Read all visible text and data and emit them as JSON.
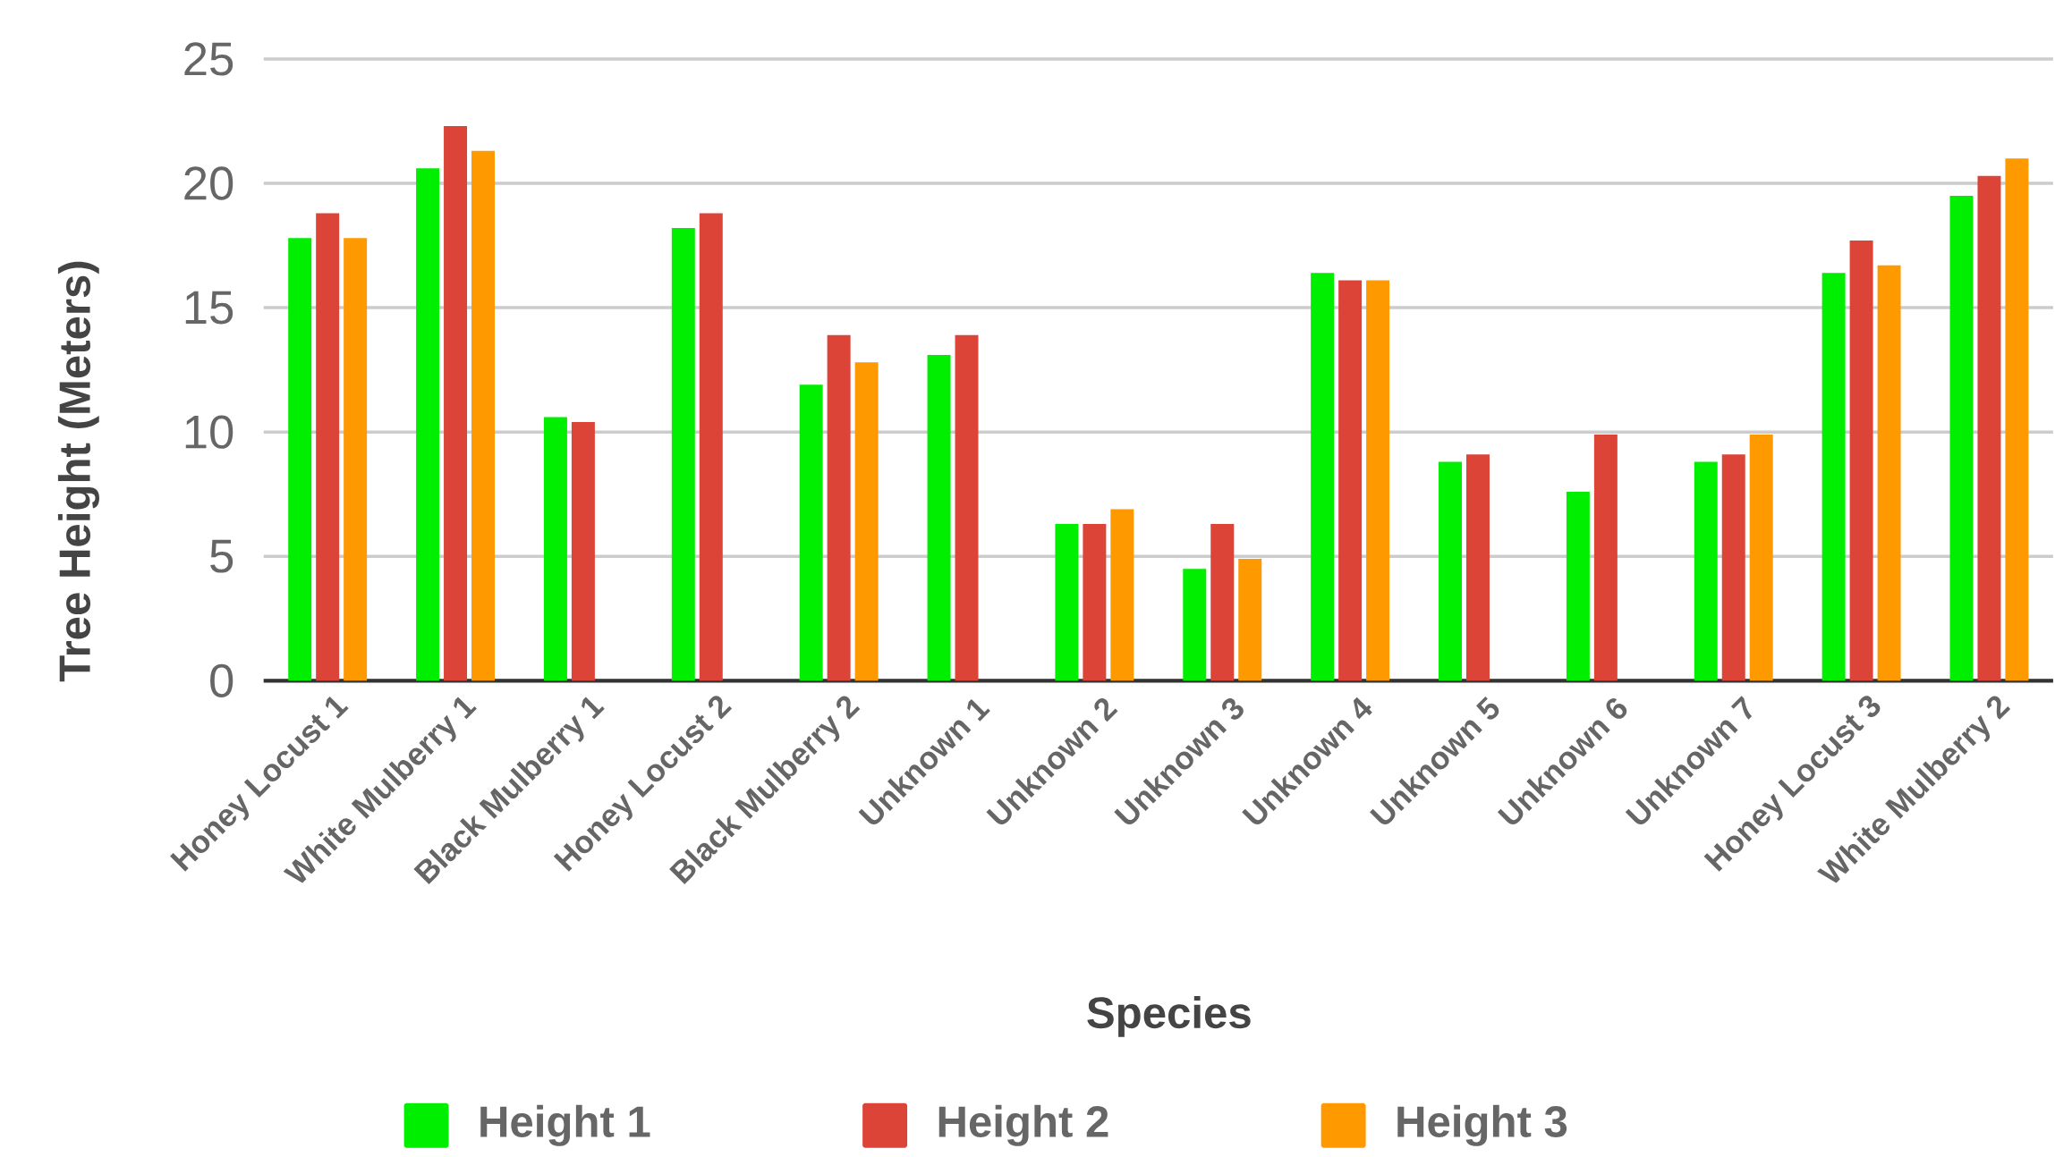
{
  "chart_data": {
    "type": "bar",
    "xlabel": "Species",
    "ylabel": "Tree Height (Meters)",
    "categories": [
      "Honey Locust 1",
      "White Mulberry 1",
      "Black Mulberry 1",
      "Honey Locust 2",
      "Black Mulberry 2",
      "Unknown 1",
      "Unknown 2",
      "Unknown 3",
      "Unknown 4",
      "Unknown 5",
      "Unknown 6",
      "Unknown 7",
      "Honey Locust 3",
      "White Mulberry 2"
    ],
    "series": [
      {
        "name": "Height 1",
        "color": "#00ee00",
        "values": [
          17.8,
          20.6,
          10.6,
          18.2,
          11.9,
          13.1,
          6.3,
          4.5,
          16.4,
          8.8,
          7.6,
          8.8,
          16.4,
          19.5
        ]
      },
      {
        "name": "Height 2",
        "color": "#db4437",
        "values": [
          18.8,
          22.3,
          10.4,
          18.8,
          13.9,
          13.9,
          6.3,
          6.3,
          16.1,
          9.1,
          9.9,
          9.1,
          17.7,
          20.3
        ]
      },
      {
        "name": "Height 3",
        "color": "#ff9900",
        "values": [
          17.8,
          21.3,
          null,
          null,
          12.8,
          null,
          6.9,
          4.9,
          16.1,
          null,
          null,
          9.9,
          16.7,
          21.0
        ]
      }
    ],
    "ylim": [
      0,
      25
    ],
    "yticks": [
      0,
      5,
      10,
      15,
      20,
      25
    ],
    "grid": "y",
    "legend": "bottom"
  }
}
